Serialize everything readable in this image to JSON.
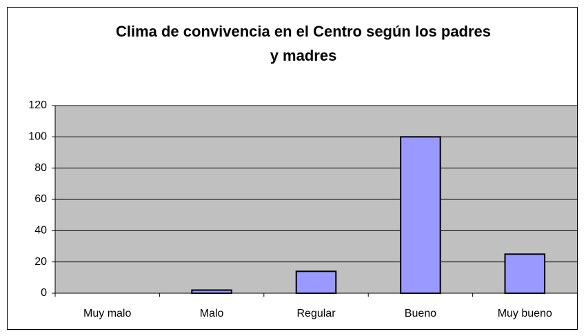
{
  "chart_data": {
    "type": "bar",
    "title": [
      "Clima de convivencia en el Centro según los padres",
      "y madres"
    ],
    "categories": [
      "Muy malo",
      "Malo",
      "Regular",
      "Bueno",
      "Muy bueno"
    ],
    "values": [
      0,
      2,
      14,
      100,
      25
    ],
    "color": "#9999ff",
    "ylim": [
      0,
      120
    ],
    "yticks": [
      0,
      20,
      40,
      60,
      80,
      100,
      120
    ],
    "grid": true
  }
}
